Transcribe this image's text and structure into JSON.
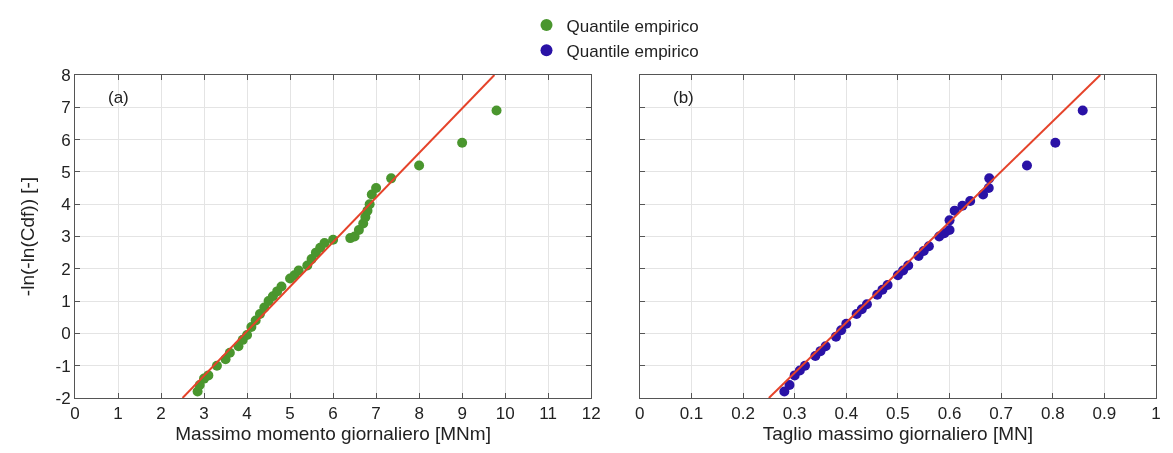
{
  "chart_data": [
    {
      "type": "scatter",
      "xlabel": "Massimo momento giornaliero [MNm]",
      "ylabel": "-ln(-ln(Cdf)) [-]",
      "annotations": [
        "(a)"
      ],
      "xlim": [
        0,
        12
      ],
      "xticks": [
        0,
        1,
        2,
        3,
        4,
        5,
        6,
        7,
        8,
        9,
        10,
        11,
        12
      ],
      "ylim": [
        -2,
        8
      ],
      "yticks": [
        -2,
        -1,
        0,
        1,
        2,
        3,
        4,
        5,
        6,
        7,
        8
      ],
      "grid": true,
      "marker": "circle",
      "legend": "top",
      "series": [
        {
          "name": "Quantile empirico",
          "color": "#4a962e",
          "x": [
            2.85,
            2.9,
            3.0,
            3.1,
            3.3,
            3.5,
            3.6,
            3.8,
            3.9,
            4.0,
            4.1,
            4.2,
            4.3,
            4.4,
            4.5,
            4.6,
            4.7,
            4.8,
            5.0,
            5.1,
            5.2,
            5.4,
            5.5,
            5.6,
            5.7,
            5.8,
            6.0,
            6.4,
            6.5,
            6.6,
            6.7,
            6.75,
            6.8,
            6.85,
            6.9,
            7.0,
            7.35,
            8.0,
            9.0,
            9.8
          ],
          "values": [
            -1.8,
            -1.6,
            -1.4,
            -1.3,
            -1.0,
            -0.8,
            -0.6,
            -0.4,
            -0.2,
            -0.05,
            0.2,
            0.4,
            0.6,
            0.8,
            1.0,
            1.15,
            1.3,
            1.45,
            1.7,
            1.8,
            1.95,
            2.1,
            2.3,
            2.5,
            2.65,
            2.8,
            2.9,
            2.95,
            3.0,
            3.2,
            3.4,
            3.6,
            3.8,
            4.0,
            4.3,
            4.5,
            4.8,
            5.2,
            5.9,
            6.9
          ]
        },
        {
          "type": "line",
          "color": "#e5432a",
          "x": [
            2.5,
            9.75
          ],
          "values": [
            -2,
            8
          ],
          "marker": "none"
        }
      ]
    },
    {
      "type": "scatter",
      "xlabel": "Taglio massimo giornaliero [MN]",
      "annotations": [
        "(b)"
      ],
      "xlim": [
        0,
        1
      ],
      "xticks": [
        0,
        0.1,
        0.2,
        0.3,
        0.4,
        0.5,
        0.6,
        0.7,
        0.8,
        0.9,
        1
      ],
      "ylim": [
        -2,
        8
      ],
      "yticks": [
        -2,
        -1,
        0,
        1,
        2,
        3,
        4,
        5,
        6,
        7,
        8
      ],
      "tick_labels": "x",
      "grid": true,
      "marker": "circle",
      "series": [
        {
          "name": "Quantile empirico",
          "color": "#2a12a6",
          "x": [
            0.28,
            0.29,
            0.3,
            0.31,
            0.32,
            0.34,
            0.35,
            0.36,
            0.38,
            0.39,
            0.4,
            0.42,
            0.43,
            0.44,
            0.46,
            0.47,
            0.48,
            0.5,
            0.51,
            0.52,
            0.54,
            0.55,
            0.56,
            0.58,
            0.59,
            0.6,
            0.6,
            0.61,
            0.625,
            0.64,
            0.665,
            0.676,
            0.677,
            0.75,
            0.805,
            0.858
          ],
          "values": [
            -1.8,
            -1.6,
            -1.3,
            -1.15,
            -1.0,
            -0.7,
            -0.55,
            -0.4,
            -0.1,
            0.1,
            0.3,
            0.6,
            0.75,
            0.9,
            1.2,
            1.35,
            1.5,
            1.8,
            1.95,
            2.1,
            2.4,
            2.55,
            2.7,
            3.0,
            3.1,
            3.2,
            3.5,
            3.8,
            3.95,
            4.1,
            4.3,
            4.5,
            4.8,
            5.2,
            5.9,
            6.9
          ]
        },
        {
          "type": "line",
          "color": "#e5432a",
          "x": [
            0.25,
            0.892
          ],
          "values": [
            -2,
            8
          ],
          "marker": "none"
        }
      ]
    }
  ]
}
